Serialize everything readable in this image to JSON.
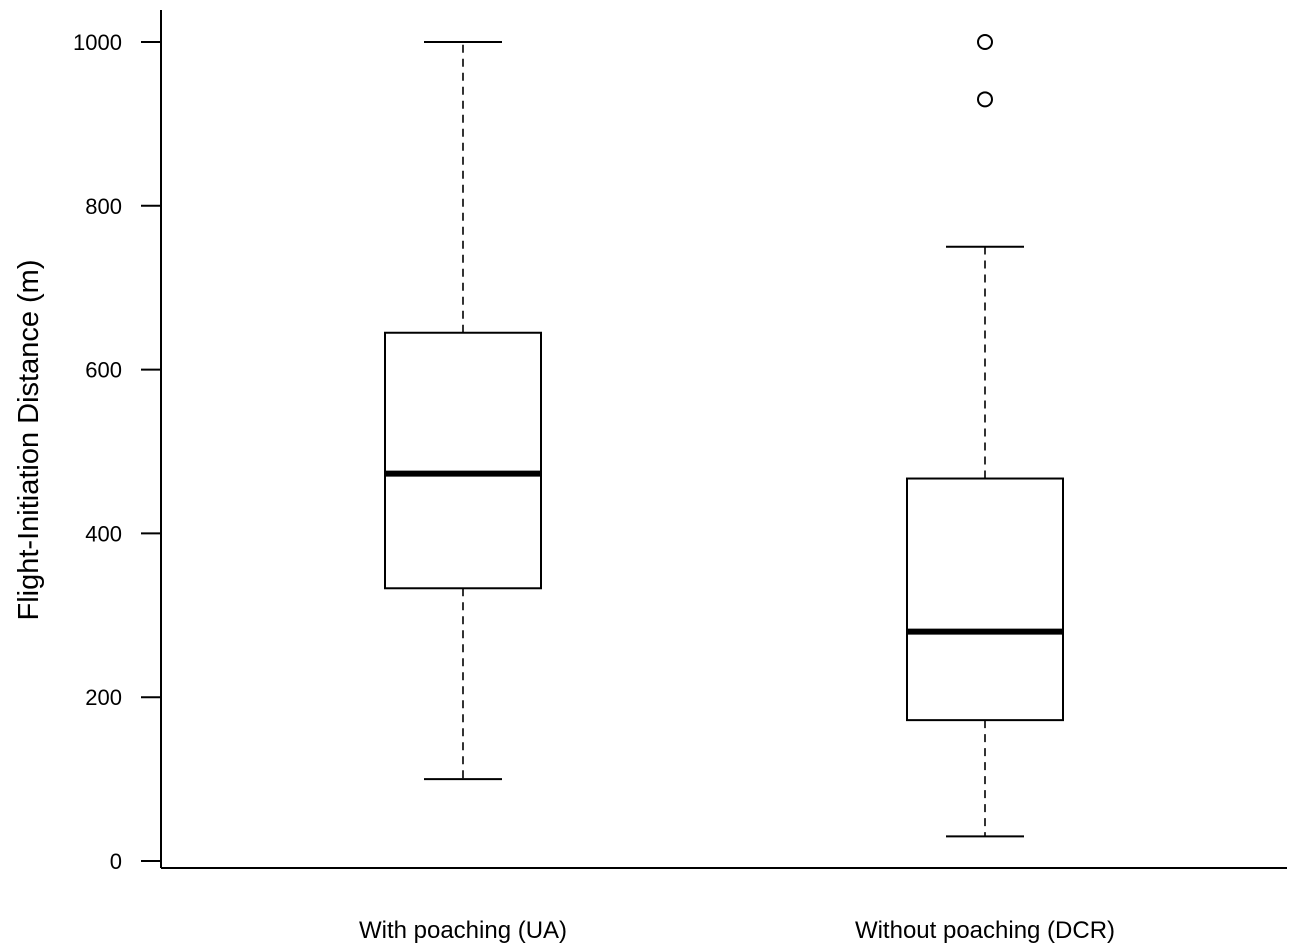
{
  "chart_data": {
    "type": "boxplot",
    "title": "",
    "xlabel": "",
    "ylabel": "Flight-Initiation Distance (m)",
    "ylim": [
      0,
      1000
    ],
    "yticks": [
      0,
      200,
      400,
      600,
      800,
      1000
    ],
    "grid": false,
    "categories": [
      "With poaching (UA)",
      "Without poaching (DCR)"
    ],
    "boxes": [
      {
        "category": "With poaching (UA)",
        "whisker_low": 100,
        "q1": 333,
        "median": 473,
        "q3": 645,
        "whisker_high": 1000,
        "outliers": []
      },
      {
        "category": "Without poaching (DCR)",
        "whisker_low": 30,
        "q1": 172,
        "median": 280,
        "q3": 467,
        "whisker_high": 750,
        "outliers": [
          930,
          1000
        ]
      }
    ]
  }
}
